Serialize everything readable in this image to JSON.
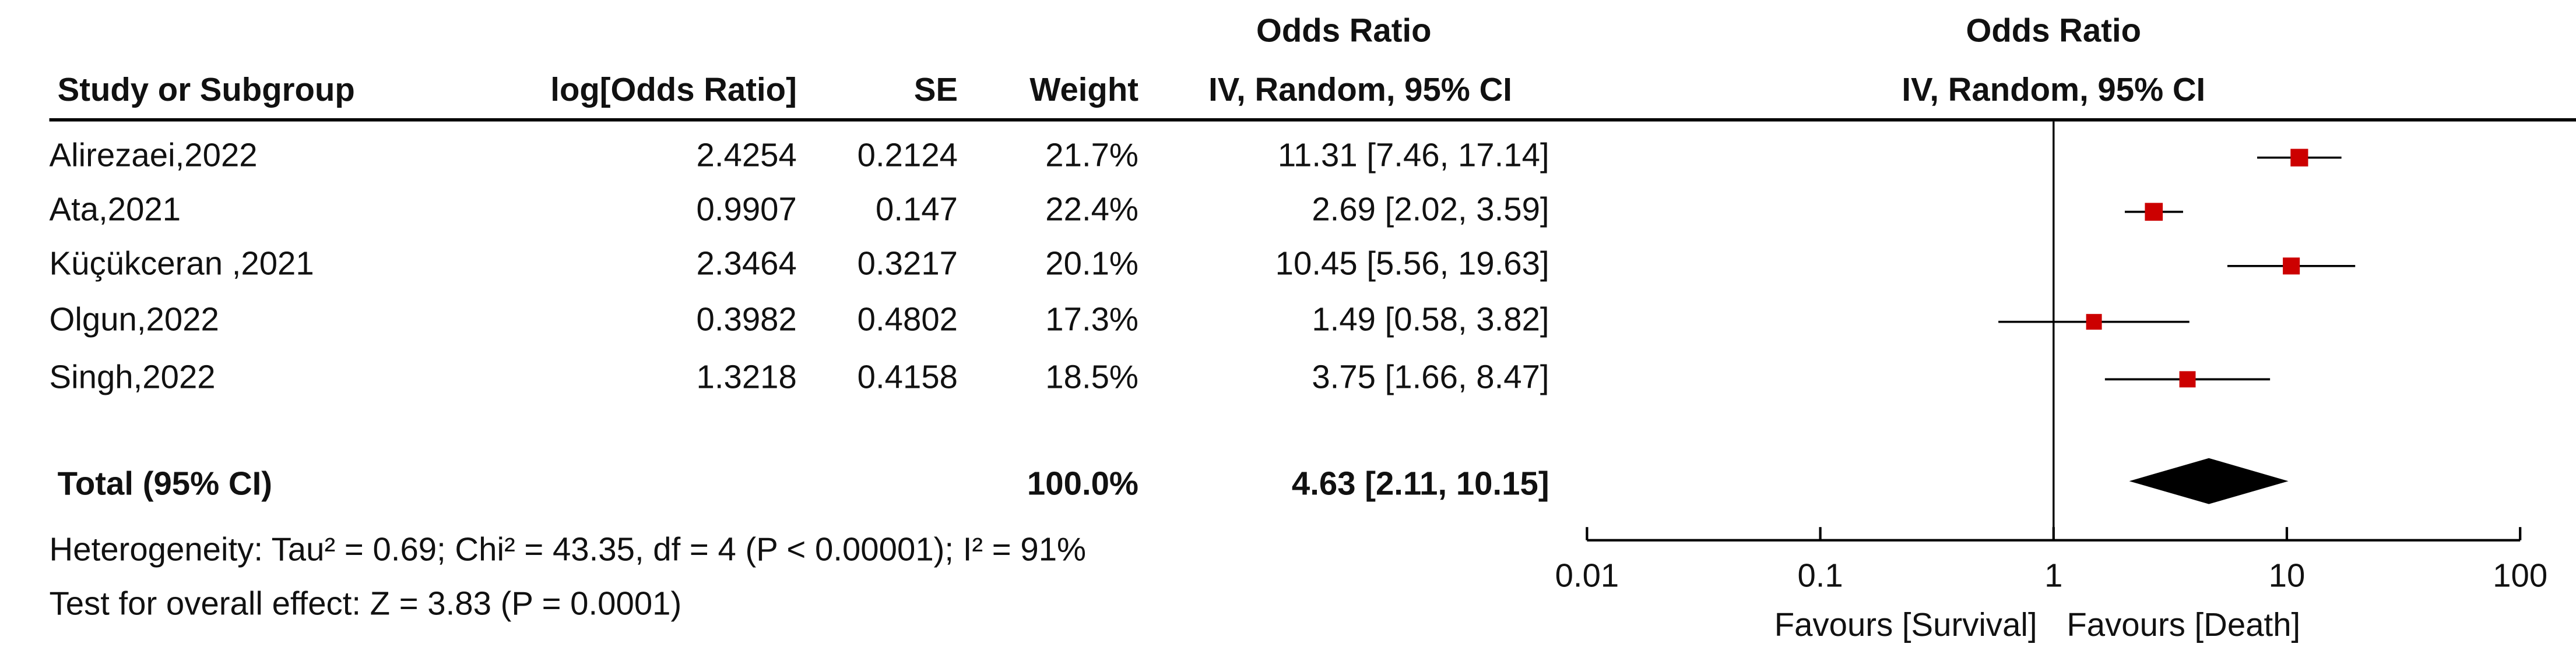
{
  "chart_data": {
    "type": "forest",
    "title": "Odds Ratio",
    "subtitle": "IV, Random, 95% CI",
    "headers": [
      "Study or Subgroup",
      "log[Odds Ratio]",
      "SE",
      "Weight"
    ],
    "categories": [
      "Alirezaei,2022",
      "Ata,2021",
      "Küçükceran ,2021",
      "Olgun,2022",
      "Singh,2022"
    ],
    "log_or": [
      2.4254,
      0.9907,
      2.3464,
      0.3982,
      1.3218
    ],
    "se": [
      0.2124,
      0.147,
      0.3217,
      0.4802,
      0.4158
    ],
    "weight": [
      21.7,
      22.4,
      20.1,
      17.3,
      18.5
    ],
    "weight_labels": [
      "21.7%",
      "22.4%",
      "20.1%",
      "17.3%",
      "18.5%"
    ],
    "values": [
      11.31,
      2.69,
      10.45,
      1.49,
      3.75
    ],
    "lower": [
      7.46,
      2.02,
      5.56,
      0.58,
      1.66
    ],
    "upper": [
      17.14,
      3.59,
      19.63,
      3.82,
      8.47
    ],
    "value_labels": [
      "11.31 [7.46, 17.14]",
      "2.69 [2.02, 3.59]",
      "10.45 [5.56, 19.63]",
      "1.49 [0.58, 3.82]",
      "3.75 [1.66, 8.47]"
    ],
    "total": {
      "name": "Total (95% CI)",
      "weight": 100.0,
      "weight_label": "100.0%",
      "value": 4.63,
      "lower": 2.11,
      "upper": 10.15,
      "value_label": "4.63 [2.11, 10.15]"
    },
    "heterogeneity": "Heterogeneity: Tau² = 0.69; Chi² = 43.35, df = 4 (P < 0.00001); I² = 91%",
    "overall_effect": "Test for overall effect: Z = 3.83 (P = 0.0001)",
    "xlim": [
      0.01,
      100
    ],
    "xticks": [
      0.01,
      0.1,
      1,
      10,
      100
    ],
    "log_x": true,
    "xlabel_left": "Favours [Survival]",
    "xlabel_right": "Favours [Death]",
    "marker_color": "#cc0000"
  }
}
